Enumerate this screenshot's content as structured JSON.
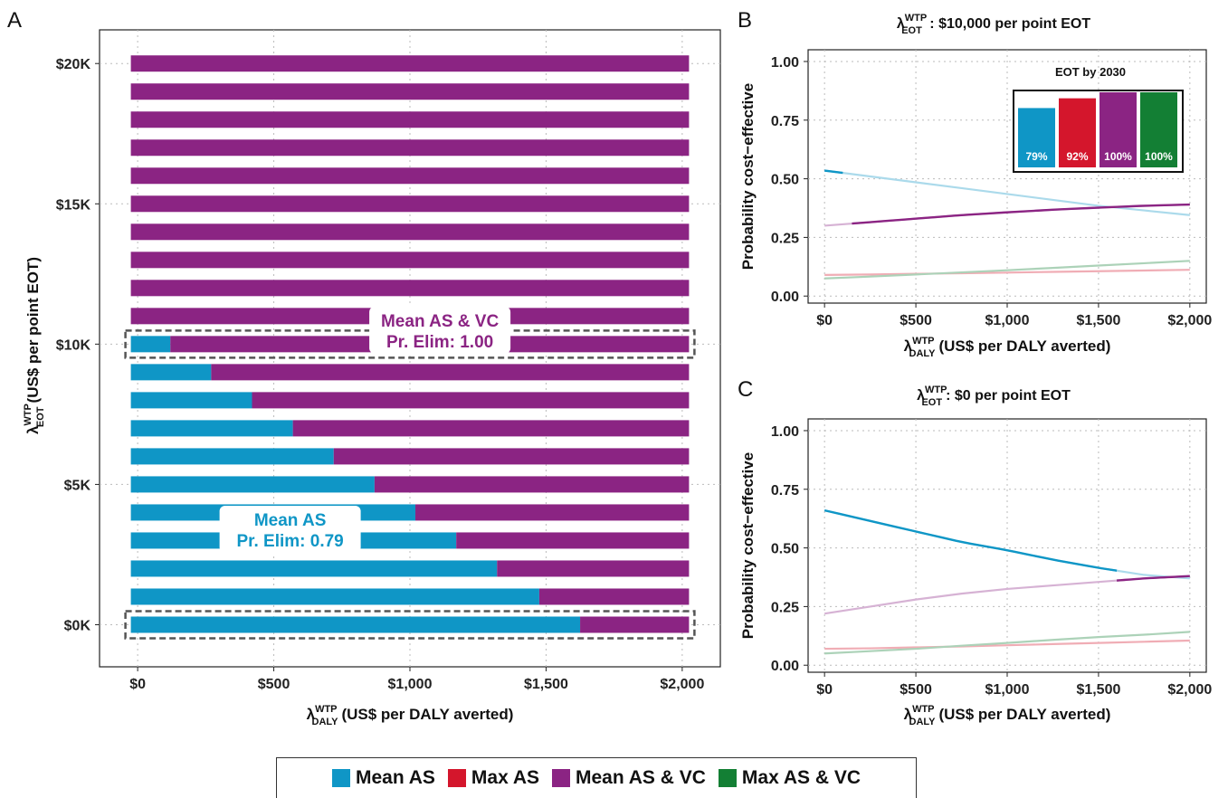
{
  "colors": {
    "mean_as": "#0f96c6",
    "max_as": "#d4162c",
    "mean_as_vc": "#8b2483",
    "max_as_vc": "#137f34"
  },
  "legend": [
    {
      "label": "Mean AS",
      "color": "#0f96c6"
    },
    {
      "label": "Max AS",
      "color": "#d4162c"
    },
    {
      "label": "Mean AS & VC",
      "color": "#8b2483"
    },
    {
      "label": "Max AS & VC",
      "color": "#137f34"
    }
  ],
  "chart_data": [
    {
      "panel": "A",
      "type": "bar",
      "orientation": "horizontal-stacked",
      "xlabel": "(US$ per DALY averted)",
      "xlabel_symbol": "λ",
      "xlabel_sup": "WTP",
      "xlabel_sub": "DALY",
      "ylabel": "(US$ per point EOT)",
      "ylabel_symbol": "λ",
      "ylabel_sup": "WTP",
      "ylabel_sub": "EOT",
      "x_ticks": [
        "$0",
        "$500",
        "$1,000",
        "$1,500",
        "$2,000"
      ],
      "x_tick_values": [
        0,
        500,
        1000,
        1500,
        2000
      ],
      "y_ticks": [
        "$0K",
        "$5K",
        "$10K",
        "$15K",
        "$20K"
      ],
      "y_tick_values": [
        0,
        5,
        10,
        15,
        20
      ],
      "xlim": [
        -140,
        2140
      ],
      "ylim": [
        -1.5,
        21.2
      ],
      "bar_range": [
        -25,
        2025
      ],
      "eot_thousands": [
        0,
        1,
        2,
        3,
        4,
        5,
        6,
        7,
        8,
        9,
        10,
        11,
        12,
        13,
        14,
        15,
        16,
        17,
        18,
        19,
        20
      ],
      "mean_as_until": [
        1625,
        1475,
        1320,
        1170,
        1020,
        870,
        720,
        570,
        420,
        270,
        120,
        -25,
        -25,
        -25,
        -25,
        -25,
        -25,
        -25,
        -25,
        -25,
        -25
      ],
      "highlight_rows": [
        0,
        10
      ],
      "annotations": [
        {
          "line1": "Mean AS & VC",
          "line2": "Pr. Elim: 1.00",
          "color": "#8b2483",
          "x": 1110,
          "y": 10.5
        },
        {
          "line1": "Mean AS",
          "line2": "Pr. Elim: 0.79",
          "color": "#0f96c6",
          "x": 560,
          "y": 3.4
        }
      ],
      "grid": true
    },
    {
      "panel": "B",
      "type": "line",
      "title_symbol": "λ",
      "title_sup": "WTP",
      "title_sub": "EOT",
      "title_text": " : $10,000  per  point  EOT",
      "xlabel": "(US$ per DALY averted)",
      "xlabel_symbol": "λ",
      "xlabel_sup": "WTP",
      "xlabel_sub": "DALY",
      "ylabel": "Probability cost−effective",
      "x_ticks": [
        "$0",
        "$500",
        "$1,000",
        "$1,500",
        "$2,000"
      ],
      "x_tick_values": [
        0,
        500,
        1000,
        1500,
        2000
      ],
      "y_ticks": [
        "0.00",
        "0.25",
        "0.50",
        "0.75",
        "1.00"
      ],
      "y_tick_values": [
        0,
        0.25,
        0.5,
        0.75,
        1
      ],
      "xlim": [
        -90,
        2090
      ],
      "ylim": [
        -0.03,
        1.05
      ],
      "x": [
        0,
        250,
        500,
        750,
        1000,
        1250,
        1500,
        1750,
        2000
      ],
      "series": [
        {
          "name": "Mean AS",
          "color": "#0f96c6",
          "values": [
            0.535,
            0.51,
            0.485,
            0.46,
            0.435,
            0.41,
            0.385,
            0.365,
            0.345
          ],
          "dominant_until": 100
        },
        {
          "name": "Max AS",
          "color": "#d4162c",
          "values": [
            0.09,
            0.092,
            0.095,
            0.097,
            0.1,
            0.103,
            0.106,
            0.109,
            0.112
          ],
          "dominant_until": -1
        },
        {
          "name": "Mean AS & VC",
          "color": "#8b2483",
          "values": [
            0.3,
            0.315,
            0.33,
            0.345,
            0.357,
            0.368,
            0.377,
            0.385,
            0.39
          ],
          "dominant_from": 150
        },
        {
          "name": "Max AS & VC",
          "color": "#137f34",
          "values": [
            0.075,
            0.083,
            0.092,
            0.101,
            0.11,
            0.12,
            0.13,
            0.14,
            0.15
          ],
          "dominant_until": -1
        }
      ],
      "inset": {
        "title": "EOT by 2030",
        "bars": [
          {
            "label": "79%",
            "value": 79,
            "color": "#0f96c6"
          },
          {
            "label": "92%",
            "value": 92,
            "color": "#d4162c"
          },
          {
            "label": "100%",
            "value": 100,
            "color": "#8b2483"
          },
          {
            "label": "100%",
            "value": 100,
            "color": "#137f34"
          }
        ]
      },
      "grid": true
    },
    {
      "panel": "C",
      "type": "line",
      "title_symbol": "λ",
      "title_sup": "WTP",
      "title_sub": "EOT",
      "title_text": ": $0 per point EOT",
      "xlabel": "(US$ per DALY averted)",
      "xlabel_symbol": "λ",
      "xlabel_sup": "WTP",
      "xlabel_sub": "DALY",
      "ylabel": "Probability cost−effective",
      "x_ticks": [
        "$0",
        "$500",
        "$1,000",
        "$1,500",
        "$2,000"
      ],
      "x_tick_values": [
        0,
        500,
        1000,
        1500,
        2000
      ],
      "y_ticks": [
        "0.00",
        "0.25",
        "0.50",
        "0.75",
        "1.00"
      ],
      "y_tick_values": [
        0,
        0.25,
        0.5,
        0.75,
        1
      ],
      "xlim": [
        -90,
        2090
      ],
      "ylim": [
        -0.03,
        1.05
      ],
      "x": [
        0,
        250,
        500,
        750,
        1000,
        1250,
        1500,
        1750,
        2000
      ],
      "series": [
        {
          "name": "Mean AS",
          "color": "#0f96c6",
          "values": [
            0.66,
            0.615,
            0.57,
            0.525,
            0.49,
            0.45,
            0.415,
            0.385,
            0.37
          ],
          "dominant_until": 1600
        },
        {
          "name": "Max AS",
          "color": "#d4162c",
          "values": [
            0.07,
            0.072,
            0.076,
            0.08,
            0.085,
            0.09,
            0.095,
            0.1,
            0.105
          ],
          "dominant_until": -1
        },
        {
          "name": "Mean AS & VC",
          "color": "#8b2483",
          "values": [
            0.22,
            0.25,
            0.28,
            0.305,
            0.325,
            0.34,
            0.355,
            0.37,
            0.38
          ],
          "dominant_from": 1600
        },
        {
          "name": "Max AS & VC",
          "color": "#137f34",
          "values": [
            0.05,
            0.06,
            0.07,
            0.083,
            0.095,
            0.108,
            0.12,
            0.13,
            0.142
          ],
          "dominant_until": -1
        }
      ],
      "grid": true
    }
  ]
}
